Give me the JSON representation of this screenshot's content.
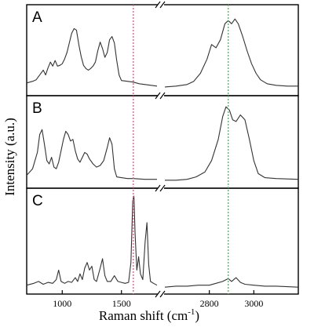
{
  "chart_data": {
    "type": "line",
    "xlabel": "Raman shift (cm",
    "xlabel_sup": "-1",
    "xlabel_close": ")",
    "ylabel": "Intensity (a.u.)",
    "x_axis": {
      "broken": true,
      "segments": [
        {
          "xlim": [
            700,
            1800
          ],
          "ticks": [
            1000,
            1500
          ],
          "tick_labels": [
            "1000",
            "1500"
          ]
        },
        {
          "xlim": [
            2600,
            3200
          ],
          "ticks": [
            2800,
            3000
          ],
          "tick_labels": [
            "2800",
            "3000"
          ]
        }
      ]
    },
    "reference_lines": [
      {
        "x": 1600,
        "color": "#e8608c",
        "style": "dotted"
      },
      {
        "x": 2885,
        "color": "#5cb85c",
        "style": "dotted"
      }
    ],
    "panels": [
      {
        "label": "A",
        "points": [
          [
            700,
            0.12
          ],
          [
            750,
            0.14
          ],
          [
            780,
            0.16
          ],
          [
            810,
            0.22
          ],
          [
            840,
            0.28
          ],
          [
            860,
            0.22
          ],
          [
            880,
            0.31
          ],
          [
            900,
            0.38
          ],
          [
            920,
            0.33
          ],
          [
            940,
            0.4
          ],
          [
            960,
            0.33
          ],
          [
            980,
            0.34
          ],
          [
            1000,
            0.36
          ],
          [
            1020,
            0.42
          ],
          [
            1040,
            0.5
          ],
          [
            1060,
            0.62
          ],
          [
            1080,
            0.74
          ],
          [
            1100,
            0.8
          ],
          [
            1120,
            0.78
          ],
          [
            1140,
            0.6
          ],
          [
            1160,
            0.45
          ],
          [
            1180,
            0.34
          ],
          [
            1200,
            0.3
          ],
          [
            1220,
            0.28
          ],
          [
            1240,
            0.3
          ],
          [
            1260,
            0.33
          ],
          [
            1280,
            0.38
          ],
          [
            1300,
            0.52
          ],
          [
            1320,
            0.63
          ],
          [
            1340,
            0.55
          ],
          [
            1360,
            0.44
          ],
          [
            1380,
            0.5
          ],
          [
            1400,
            0.66
          ],
          [
            1420,
            0.7
          ],
          [
            1440,
            0.62
          ],
          [
            1460,
            0.4
          ],
          [
            1480,
            0.22
          ],
          [
            1500,
            0.15
          ],
          [
            1550,
            0.14
          ],
          [
            1600,
            0.13
          ],
          [
            1650,
            0.11
          ],
          [
            1700,
            0.1
          ],
          [
            1750,
            0.09
          ],
          [
            1800,
            0.08
          ],
          [
            2600,
            0.07
          ],
          [
            2650,
            0.08
          ],
          [
            2700,
            0.1
          ],
          [
            2730,
            0.14
          ],
          [
            2760,
            0.24
          ],
          [
            2790,
            0.42
          ],
          [
            2810,
            0.6
          ],
          [
            2830,
            0.56
          ],
          [
            2850,
            0.66
          ],
          [
            2870,
            0.86
          ],
          [
            2885,
            0.9
          ],
          [
            2900,
            0.86
          ],
          [
            2915,
            0.92
          ],
          [
            2930,
            0.86
          ],
          [
            2950,
            0.7
          ],
          [
            2970,
            0.52
          ],
          [
            2990,
            0.36
          ],
          [
            3010,
            0.24
          ],
          [
            3030,
            0.16
          ],
          [
            3060,
            0.11
          ],
          [
            3100,
            0.09
          ],
          [
            3150,
            0.08
          ],
          [
            3200,
            0.08
          ]
        ]
      },
      {
        "label": "B",
        "points": [
          [
            700,
            0.12
          ],
          [
            750,
            0.2
          ],
          [
            790,
            0.4
          ],
          [
            810,
            0.62
          ],
          [
            830,
            0.68
          ],
          [
            850,
            0.5
          ],
          [
            870,
            0.3
          ],
          [
            890,
            0.26
          ],
          [
            910,
            0.34
          ],
          [
            930,
            0.22
          ],
          [
            950,
            0.2
          ],
          [
            970,
            0.28
          ],
          [
            990,
            0.42
          ],
          [
            1010,
            0.56
          ],
          [
            1030,
            0.66
          ],
          [
            1050,
            0.62
          ],
          [
            1070,
            0.54
          ],
          [
            1090,
            0.56
          ],
          [
            1110,
            0.42
          ],
          [
            1130,
            0.32
          ],
          [
            1150,
            0.28
          ],
          [
            1170,
            0.34
          ],
          [
            1190,
            0.4
          ],
          [
            1210,
            0.38
          ],
          [
            1230,
            0.32
          ],
          [
            1260,
            0.26
          ],
          [
            1290,
            0.22
          ],
          [
            1320,
            0.24
          ],
          [
            1350,
            0.3
          ],
          [
            1380,
            0.46
          ],
          [
            1400,
            0.58
          ],
          [
            1420,
            0.5
          ],
          [
            1440,
            0.2
          ],
          [
            1460,
            0.1
          ],
          [
            1500,
            0.09
          ],
          [
            1550,
            0.08
          ],
          [
            1600,
            0.08
          ],
          [
            1700,
            0.07
          ],
          [
            1800,
            0.07
          ],
          [
            2600,
            0.06
          ],
          [
            2650,
            0.06
          ],
          [
            2700,
            0.07
          ],
          [
            2740,
            0.1
          ],
          [
            2780,
            0.16
          ],
          [
            2810,
            0.3
          ],
          [
            2840,
            0.56
          ],
          [
            2860,
            0.84
          ],
          [
            2875,
            0.96
          ],
          [
            2890,
            0.92
          ],
          [
            2905,
            0.8
          ],
          [
            2920,
            0.78
          ],
          [
            2940,
            0.86
          ],
          [
            2960,
            0.8
          ],
          [
            2980,
            0.56
          ],
          [
            3000,
            0.3
          ],
          [
            3020,
            0.14
          ],
          [
            3050,
            0.09
          ],
          [
            3100,
            0.08
          ],
          [
            3200,
            0.07
          ]
        ]
      },
      {
        "label": "C",
        "points": [
          [
            700,
            0.06
          ],
          [
            760,
            0.08
          ],
          [
            800,
            0.1
          ],
          [
            840,
            0.07
          ],
          [
            880,
            0.09
          ],
          [
            920,
            0.08
          ],
          [
            950,
            0.12
          ],
          [
            970,
            0.22
          ],
          [
            990,
            0.1
          ],
          [
            1020,
            0.08
          ],
          [
            1050,
            0.1
          ],
          [
            1080,
            0.09
          ],
          [
            1110,
            0.14
          ],
          [
            1130,
            0.1
          ],
          [
            1150,
            0.18
          ],
          [
            1170,
            0.12
          ],
          [
            1190,
            0.24
          ],
          [
            1210,
            0.3
          ],
          [
            1230,
            0.22
          ],
          [
            1250,
            0.26
          ],
          [
            1270,
            0.12
          ],
          [
            1290,
            0.1
          ],
          [
            1320,
            0.24
          ],
          [
            1340,
            0.34
          ],
          [
            1360,
            0.16
          ],
          [
            1380,
            0.1
          ],
          [
            1410,
            0.1
          ],
          [
            1440,
            0.16
          ],
          [
            1470,
            0.1
          ],
          [
            1500,
            0.09
          ],
          [
            1530,
            0.08
          ],
          [
            1560,
            0.09
          ],
          [
            1580,
            0.3
          ],
          [
            1595,
            0.95
          ],
          [
            1605,
            1.0
          ],
          [
            1615,
            0.6
          ],
          [
            1630,
            0.22
          ],
          [
            1645,
            0.36
          ],
          [
            1660,
            0.18
          ],
          [
            1680,
            0.12
          ],
          [
            1700,
            0.52
          ],
          [
            1715,
            0.72
          ],
          [
            1730,
            0.28
          ],
          [
            1745,
            0.1
          ],
          [
            1770,
            0.08
          ],
          [
            1800,
            0.06
          ],
          [
            2600,
            0.04
          ],
          [
            2650,
            0.05
          ],
          [
            2700,
            0.05
          ],
          [
            2750,
            0.06
          ],
          [
            2800,
            0.06
          ],
          [
            2830,
            0.08
          ],
          [
            2860,
            0.1
          ],
          [
            2885,
            0.13
          ],
          [
            2900,
            0.1
          ],
          [
            2920,
            0.14
          ],
          [
            2940,
            0.09
          ],
          [
            2960,
            0.07
          ],
          [
            3000,
            0.06
          ],
          [
            3050,
            0.05
          ],
          [
            3100,
            0.05
          ],
          [
            3200,
            0.04
          ]
        ]
      }
    ],
    "grid": false,
    "legend": "none"
  }
}
